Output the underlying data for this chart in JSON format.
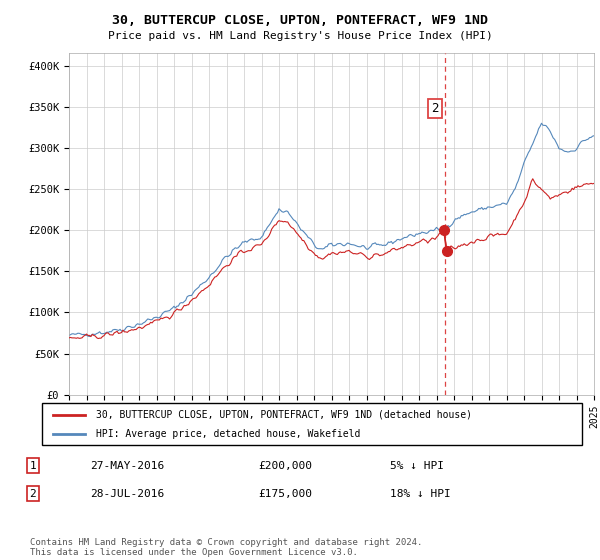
{
  "title": "30, BUTTERCUP CLOSE, UPTON, PONTEFRACT, WF9 1ND",
  "subtitle": "Price paid vs. HM Land Registry's House Price Index (HPI)",
  "ylabel_ticks": [
    "£0",
    "£50K",
    "£100K",
    "£150K",
    "£200K",
    "£250K",
    "£300K",
    "£350K",
    "£400K"
  ],
  "ytick_values": [
    0,
    50000,
    100000,
    150000,
    200000,
    250000,
    300000,
    350000,
    400000
  ],
  "ylim": [
    0,
    415000
  ],
  "hpi_color": "#5588bb",
  "price_color": "#cc2222",
  "dashed_line_color": "#dd4444",
  "legend_house_label": "30, BUTTERCUP CLOSE, UPTON, PONTEFRACT, WF9 1ND (detached house)",
  "legend_hpi_label": "HPI: Average price, detached house, Wakefield",
  "table_row1": [
    "1",
    "27-MAY-2016",
    "£200,000",
    "5% ↓ HPI"
  ],
  "table_row2": [
    "2",
    "28-JUL-2016",
    "£175,000",
    "18% ↓ HPI"
  ],
  "footer": "Contains HM Land Registry data © Crown copyright and database right 2024.\nThis data is licensed under the Open Government Licence v3.0.",
  "sale1_y": 200000,
  "sale2_y": 175000,
  "xmin": 1995,
  "xmax": 2025
}
